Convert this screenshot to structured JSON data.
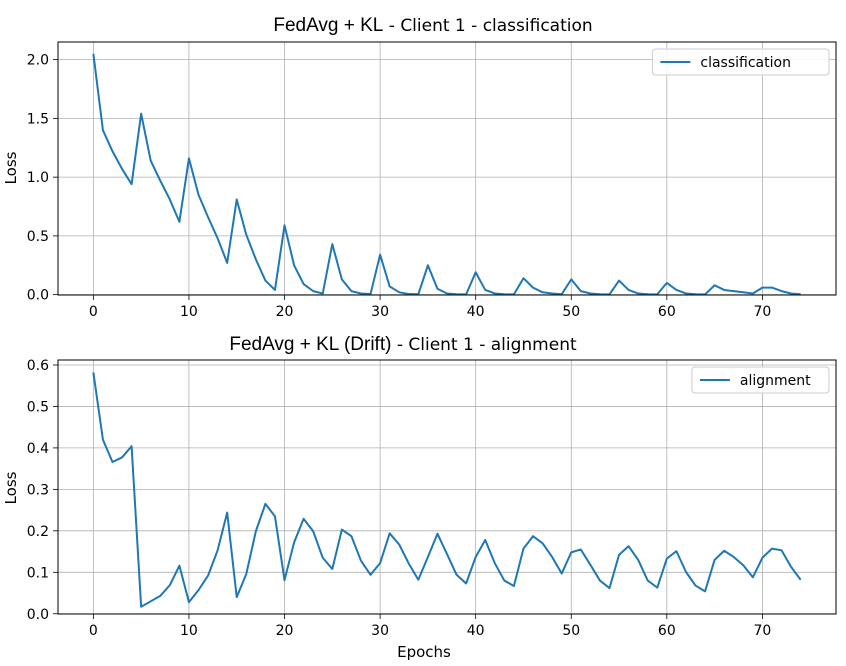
{
  "chart_data": [
    {
      "type": "line",
      "title_main": "FedAvg + KL",
      "title_rest": " - Client 1 - classification",
      "xlabel": "",
      "ylabel": "Loss",
      "xlim": [
        -3.7,
        77.7
      ],
      "ylim": [
        -0.003,
        2.15
      ],
      "xticks": [
        0,
        10,
        20,
        30,
        40,
        50,
        60,
        70
      ],
      "yticks": [
        0.0,
        0.5,
        1.0,
        1.5,
        2.0
      ],
      "ytick_labels": [
        "0.0",
        "0.5",
        "1.0",
        "1.5",
        "2.0"
      ],
      "grid": true,
      "legend_position": "top-right",
      "color": "#1f77b4",
      "series": [
        {
          "name": "classification",
          "x": [
            0,
            1,
            2,
            3,
            4,
            5,
            6,
            7,
            8,
            9,
            10,
            11,
            12,
            13,
            14,
            15,
            16,
            17,
            18,
            19,
            20,
            21,
            22,
            23,
            24,
            25,
            26,
            27,
            28,
            29,
            30,
            31,
            32,
            33,
            34,
            35,
            36,
            37,
            38,
            39,
            40,
            41,
            42,
            43,
            44,
            45,
            46,
            47,
            48,
            49,
            50,
            51,
            52,
            53,
            54,
            55,
            56,
            57,
            58,
            59,
            60,
            61,
            62,
            63,
            64,
            65,
            66,
            67,
            68,
            69,
            70,
            71,
            72,
            73,
            74
          ],
          "values": [
            2.05,
            1.4,
            1.22,
            1.07,
            0.94,
            1.54,
            1.14,
            0.97,
            0.81,
            0.62,
            1.16,
            0.85,
            0.66,
            0.48,
            0.27,
            0.81,
            0.51,
            0.3,
            0.12,
            0.04,
            0.59,
            0.25,
            0.09,
            0.03,
            0.01,
            0.43,
            0.13,
            0.03,
            0.01,
            0.005,
            0.34,
            0.07,
            0.02,
            0.005,
            0.003,
            0.25,
            0.05,
            0.01,
            0.003,
            0.002,
            0.19,
            0.04,
            0.01,
            0.003,
            0.002,
            0.14,
            0.06,
            0.02,
            0.01,
            0.003,
            0.13,
            0.03,
            0.01,
            0.003,
            0.002,
            0.12,
            0.04,
            0.01,
            0.003,
            0.002,
            0.1,
            0.04,
            0.01,
            0.003,
            0.002,
            0.08,
            0.04,
            0.03,
            0.02,
            0.01,
            0.06,
            0.06,
            0.03,
            0.01,
            0.003
          ]
        }
      ]
    },
    {
      "type": "line",
      "title_main": "FedAvg + KL (Drift)",
      "title_rest": " - Client 1 - alignment",
      "xlabel": "Epochs",
      "ylabel": "Loss",
      "xlim": [
        -3.7,
        77.7
      ],
      "ylim": [
        -0.0006,
        0.612
      ],
      "xticks": [
        0,
        10,
        20,
        30,
        40,
        50,
        60,
        70
      ],
      "yticks": [
        0.0,
        0.1,
        0.2,
        0.3,
        0.4,
        0.5,
        0.6
      ],
      "ytick_labels": [
        "0.0",
        "0.1",
        "0.2",
        "0.3",
        "0.4",
        "0.5",
        "0.6"
      ],
      "grid": true,
      "legend_position": "top-right",
      "color": "#1f77b4",
      "series": [
        {
          "name": "alignment",
          "x": [
            0,
            1,
            2,
            3,
            4,
            5,
            6,
            7,
            8,
            9,
            10,
            11,
            12,
            13,
            14,
            15,
            16,
            17,
            18,
            19,
            20,
            21,
            22,
            23,
            24,
            25,
            26,
            27,
            28,
            29,
            30,
            31,
            32,
            33,
            34,
            35,
            36,
            37,
            38,
            39,
            40,
            41,
            42,
            43,
            44,
            45,
            46,
            47,
            48,
            49,
            50,
            51,
            52,
            53,
            54,
            55,
            56,
            57,
            58,
            59,
            60,
            61,
            62,
            63,
            64,
            65,
            66,
            67,
            68,
            69,
            70,
            71,
            72,
            73,
            74
          ],
          "values": [
            0.582,
            0.42,
            0.366,
            0.377,
            0.404,
            0.017,
            0.03,
            0.043,
            0.069,
            0.116,
            0.028,
            0.057,
            0.092,
            0.153,
            0.244,
            0.04,
            0.096,
            0.199,
            0.265,
            0.235,
            0.081,
            0.172,
            0.229,
            0.199,
            0.135,
            0.108,
            0.203,
            0.187,
            0.128,
            0.094,
            0.122,
            0.194,
            0.167,
            0.121,
            0.082,
            0.137,
            0.193,
            0.144,
            0.094,
            0.073,
            0.137,
            0.178,
            0.122,
            0.08,
            0.067,
            0.157,
            0.187,
            0.17,
            0.137,
            0.097,
            0.148,
            0.155,
            0.118,
            0.08,
            0.062,
            0.142,
            0.163,
            0.13,
            0.08,
            0.063,
            0.133,
            0.151,
            0.101,
            0.068,
            0.054,
            0.13,
            0.152,
            0.137,
            0.117,
            0.088,
            0.135,
            0.157,
            0.153,
            0.113,
            0.082
          ]
        }
      ]
    }
  ]
}
